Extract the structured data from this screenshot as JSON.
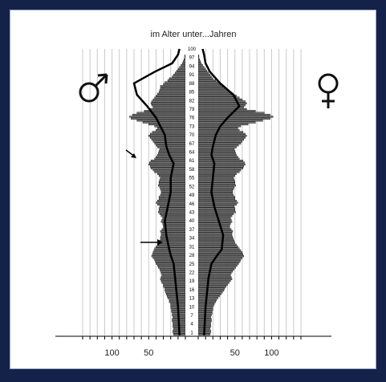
{
  "page": {
    "background": "#14224a",
    "panel": "#ffffff"
  },
  "chart_data": {
    "type": "bar",
    "title": "im Alter unter...Jahren",
    "orientation": "horizontal-population-pyramid",
    "age_labels": [
      "1",
      "4",
      "7",
      "10",
      "13",
      "16",
      "19",
      "22",
      "25",
      "28",
      "31",
      "34",
      "37",
      "40",
      "43",
      "46",
      "49",
      "52",
      "55",
      "58",
      "61",
      "64",
      "67",
      "70",
      "73",
      "76",
      "79",
      "82",
      "85",
      "88",
      "91",
      "94",
      "97",
      "100"
    ],
    "x_ticks_left": [
      "100",
      "50"
    ],
    "x_tick_values_left": [
      100,
      50
    ],
    "x_ticks_right": [
      "50",
      "100"
    ],
    "x_tick_values_right": [
      50,
      100
    ],
    "x_range": [
      0,
      140
    ],
    "grid": true,
    "legend": [
      "male-symbol-top-left",
      "female-symbol-top-right"
    ],
    "series": [
      {
        "side": "left",
        "values": [
          16,
          17,
          17,
          16,
          17,
          17,
          17,
          18,
          18,
          17,
          18,
          18,
          19,
          19,
          20,
          20,
          20,
          22,
          22,
          24,
          25,
          26,
          27,
          28,
          28,
          30,
          30,
          32,
          33,
          34,
          33,
          32,
          33,
          34,
          35,
          37,
          38,
          40,
          41,
          42,
          44,
          46,
          45,
          44,
          43,
          42,
          40,
          38,
          36,
          35,
          34,
          34,
          33,
          33,
          34,
          32,
          30,
          30,
          31,
          33,
          32,
          31,
          33,
          35,
          37,
          36,
          36,
          35,
          38,
          40,
          38,
          36,
          36,
          34,
          33,
          33,
          34,
          35,
          37,
          36,
          36,
          35,
          34,
          36,
          38,
          42,
          44,
          47,
          48,
          50,
          49,
          47,
          42,
          40,
          38,
          37,
          36,
          35,
          38,
          40,
          42,
          44,
          46,
          48,
          50,
          48,
          45,
          40,
          38,
          42,
          50,
          58,
          66,
          74,
          76,
          72,
          66,
          56,
          48,
          44,
          46,
          47,
          46,
          44,
          42,
          40,
          38,
          36,
          35,
          34,
          34,
          30,
          28,
          24,
          22,
          18,
          16,
          14,
          12,
          10,
          8,
          6,
          4,
          3,
          2,
          1,
          1,
          0,
          0,
          0
        ]
      },
      {
        "side": "right",
        "values": [
          16,
          17,
          17,
          16,
          17,
          17,
          17,
          18,
          18,
          17,
          18,
          19,
          19,
          20,
          20,
          21,
          22,
          24,
          25,
          27,
          29,
          31,
          33,
          35,
          36,
          38,
          40,
          42,
          44,
          46,
          45,
          44,
          45,
          47,
          49,
          51,
          53,
          55,
          57,
          58,
          60,
          62,
          61,
          60,
          58,
          56,
          54,
          52,
          50,
          49,
          48,
          47,
          46,
          46,
          47,
          45,
          43,
          43,
          44,
          46,
          45,
          44,
          46,
          48,
          51,
          50,
          50,
          49,
          52,
          54,
          52,
          50,
          50,
          48,
          47,
          47,
          48,
          49,
          51,
          50,
          50,
          49,
          48,
          50,
          52,
          56,
          58,
          61,
          62,
          64,
          63,
          61,
          56,
          54,
          52,
          51,
          50,
          49,
          52,
          55,
          58,
          60,
          62,
          64,
          66,
          64,
          61,
          56,
          54,
          58,
          68,
          78,
          88,
          98,
          102,
          98,
          90,
          78,
          66,
          62,
          64,
          66,
          64,
          60,
          56,
          52,
          48,
          44,
          40,
          36,
          34,
          30,
          28,
          24,
          20,
          18,
          16,
          14,
          12,
          10,
          8,
          6,
          4,
          3,
          2,
          1,
          1,
          0,
          0,
          0
        ]
      },
      {
        "side": "left",
        "kind": "outline",
        "points_age_value": [
          [
            0,
            8
          ],
          [
            5,
            9
          ],
          [
            10,
            10
          ],
          [
            15,
            12
          ],
          [
            20,
            14
          ],
          [
            25,
            16
          ],
          [
            28,
            20
          ],
          [
            30,
            22
          ],
          [
            35,
            26
          ],
          [
            40,
            28
          ],
          [
            45,
            24
          ],
          [
            50,
            20
          ],
          [
            55,
            20
          ],
          [
            60,
            16
          ],
          [
            63,
            22
          ],
          [
            66,
            26
          ],
          [
            70,
            28
          ],
          [
            73,
            34
          ],
          [
            76,
            40
          ],
          [
            80,
            52
          ],
          [
            84,
            66
          ],
          [
            88,
            70
          ],
          [
            92,
            42
          ],
          [
            95,
            18
          ],
          [
            98,
            10
          ],
          [
            100,
            8
          ]
        ]
      },
      {
        "side": "right",
        "kind": "outline",
        "points_age_value": [
          [
            0,
            8
          ],
          [
            5,
            9
          ],
          [
            10,
            10
          ],
          [
            15,
            12
          ],
          [
            20,
            14
          ],
          [
            25,
            18
          ],
          [
            28,
            26
          ],
          [
            30,
            32
          ],
          [
            35,
            34
          ],
          [
            40,
            28
          ],
          [
            45,
            22
          ],
          [
            50,
            18
          ],
          [
            55,
            20
          ],
          [
            60,
            22
          ],
          [
            63,
            18
          ],
          [
            66,
            20
          ],
          [
            70,
            24
          ],
          [
            73,
            30
          ],
          [
            76,
            40
          ],
          [
            80,
            56
          ],
          [
            84,
            48
          ],
          [
            88,
            30
          ],
          [
            92,
            16
          ],
          [
            95,
            10
          ],
          [
            98,
            8
          ],
          [
            100,
            6
          ]
        ]
      }
    ]
  }
}
